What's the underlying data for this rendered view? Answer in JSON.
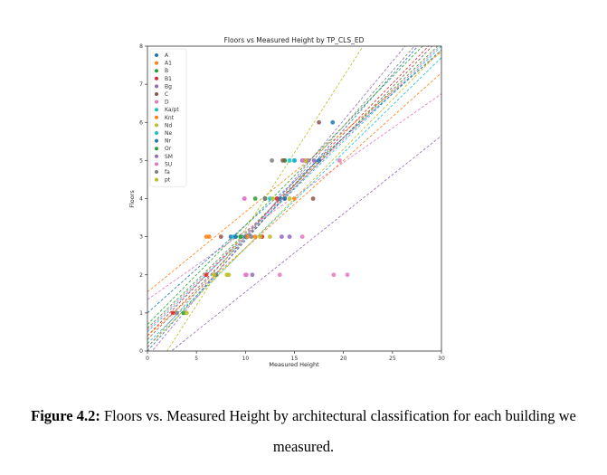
{
  "chart_data": {
    "type": "scatter",
    "title": "Floors vs Measured Height by TP_CLS_ED",
    "xlabel": "Measured Height",
    "ylabel": "Floors",
    "xlim": [
      0,
      30
    ],
    "ylim": [
      0,
      8
    ],
    "xticks": [
      0,
      5,
      10,
      15,
      20,
      25,
      30
    ],
    "yticks": [
      0,
      1,
      2,
      3,
      4,
      5,
      6,
      7,
      8
    ],
    "grid": false,
    "legend_position": "upper left",
    "fit_lines": "dashed linear regression per class",
    "series": [
      {
        "name": "A",
        "color": "#1f77b4",
        "points": [
          [
            8.5,
            3
          ],
          [
            10,
            3
          ],
          [
            13.5,
            4
          ],
          [
            14,
            5
          ],
          [
            15,
            5
          ]
        ],
        "fit": [
          0.0,
          0.29
        ]
      },
      {
        "name": "A1",
        "color": "#ff7f0e",
        "points": [
          [
            6.3,
            3
          ],
          [
            11,
            3
          ],
          [
            12,
            4
          ]
        ],
        "fit": [
          1.55,
          0.21
        ]
      },
      {
        "name": "B",
        "color": "#2ca02c",
        "points": [
          [
            3.7,
            1
          ],
          [
            7,
            2
          ],
          [
            9,
            3
          ],
          [
            11,
            4
          ],
          [
            14,
            5
          ]
        ],
        "fit": [
          0.6,
          0.25
        ]
      },
      {
        "name": "B1",
        "color": "#d62728",
        "points": [
          [
            2.6,
            1
          ],
          [
            6,
            2
          ],
          [
            11.7,
            3
          ],
          [
            13.2,
            4
          ]
        ],
        "fit": [
          0.4,
          0.265
        ]
      },
      {
        "name": "Bg",
        "color": "#9467bd",
        "points": [
          [
            10.7,
            2
          ],
          [
            14.5,
            3
          ],
          [
            15.8,
            5
          ]
        ],
        "fit": [
          -0.5,
          0.205
        ]
      },
      {
        "name": "C",
        "color": "#8c564b",
        "points": [
          [
            7.5,
            3
          ],
          [
            14,
            4
          ],
          [
            16.9,
            4
          ],
          [
            17.5,
            6
          ],
          [
            13.8,
            5
          ]
        ],
        "fit": [
          0.3,
          0.265
        ]
      },
      {
        "name": "D",
        "color": "#e377c2",
        "points": [
          [
            9.9,
            4
          ],
          [
            10,
            2
          ],
          [
            13.5,
            2
          ],
          [
            19,
            2
          ],
          [
            20.4,
            2
          ],
          [
            15.8,
            3
          ],
          [
            19.6,
            5
          ],
          [
            16,
            5
          ]
        ],
        "fit": [
          1.35,
          0.18
        ]
      },
      {
        "name": "Ka/pt",
        "color": "#17becf",
        "points": [
          [
            8.8,
            3
          ],
          [
            12,
            4
          ],
          [
            14.5,
            5
          ]
        ],
        "fit": [
          0.2,
          0.25
        ]
      },
      {
        "name": "Knt",
        "color": "#ff7f0e",
        "points": [
          [
            6,
            3
          ],
          [
            10.2,
            3
          ],
          [
            15,
            4
          ]
        ],
        "fit": [
          0.4,
          0.23
        ]
      },
      {
        "name": "Nd",
        "color": "#bcbd22",
        "points": [
          [
            8.1,
            2
          ],
          [
            11.5,
            3
          ],
          [
            14.5,
            4
          ]
        ],
        "fit": [
          0.1,
          0.26
        ]
      },
      {
        "name": "Ne",
        "color": "#17becf",
        "points": [
          [
            9.5,
            3
          ],
          [
            12.5,
            4
          ],
          [
            15,
            5
          ]
        ],
        "fit": [
          0.5,
          0.25
        ]
      },
      {
        "name": "Nr",
        "color": "#1f77b4",
        "points": [
          [
            9,
            3
          ],
          [
            14,
            4
          ],
          [
            18.9,
            6
          ],
          [
            17.5,
            5
          ]
        ],
        "fit": [
          1.0,
          0.23
        ]
      },
      {
        "name": "Or",
        "color": "#2ca02c",
        "points": [
          [
            7,
            2
          ],
          [
            9.5,
            3
          ],
          [
            12,
            4
          ]
        ],
        "fit": [
          0.7,
          0.26
        ]
      },
      {
        "name": "SM",
        "color": "#9467bd",
        "points": [
          [
            13.7,
            3
          ],
          [
            16.4,
            5
          ],
          [
            17,
            5
          ]
        ],
        "fit": [
          -0.15,
          0.31
        ]
      },
      {
        "name": "SU",
        "color": "#e377c2",
        "points": [
          [
            10.1,
            2
          ],
          [
            9.9,
            4
          ],
          [
            15.9,
            5
          ]
        ],
        "fit": [
          0.55,
          0.25
        ]
      },
      {
        "name": "fa",
        "color": "#7f7f7f",
        "points": [
          [
            3,
            1
          ],
          [
            7,
            2
          ],
          [
            10.6,
            3
          ],
          [
            12,
            4
          ],
          [
            12.7,
            5
          ]
        ],
        "fit": [
          0.1,
          0.29
        ]
      },
      {
        "name": "pt",
        "color": "#bcbd22",
        "points": [
          [
            4,
            1
          ],
          [
            6.8,
            2
          ],
          [
            8.3,
            2
          ],
          [
            12.5,
            3
          ],
          [
            12.8,
            4
          ],
          [
            16.2,
            5
          ]
        ],
        "fit": [
          -0.8,
          0.4
        ]
      }
    ]
  },
  "caption": {
    "label": "Figure 4.2:",
    "line1": " Floors vs. Measured Height by architectural classification for each building we",
    "line2": "measured."
  }
}
